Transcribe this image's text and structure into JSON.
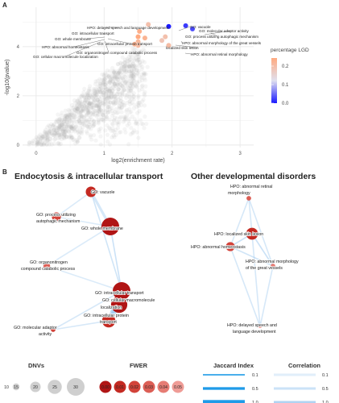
{
  "panel_a_letter": "A",
  "panel_b_letter": "B",
  "chart_data": [
    {
      "type": "scatter",
      "xlabel": "log2(enrichment rate)",
      "ylabel": "-log10(pvalue)",
      "xlim": [
        -0.2,
        3.2
      ],
      "ylim": [
        -0.1,
        5.6
      ],
      "xticks": [
        0,
        1,
        2,
        3
      ],
      "yticks": [
        0,
        2,
        4
      ],
      "grid": true,
      "legend": {
        "title": "percentage LGD",
        "position": "right",
        "ticks": [
          "0.2",
          "0.1",
          "0.0"
        ],
        "color_range": [
          0.0,
          0.25
        ],
        "colors": [
          "#1a1aff",
          "#e0e0ee",
          "#ffaa80"
        ]
      },
      "background_color": "#b3b3b3",
      "highlighted": [
        {
          "label": "HPO: delayed speech and language development",
          "x": 1.65,
          "y": 4.9,
          "lgd": 0.2
        },
        {
          "label": "GO: intracellular transport",
          "x": 1.52,
          "y": 4.62,
          "lgd": 0.24
        },
        {
          "label": "GO: whole membrane",
          "x": 1.5,
          "y": 4.4,
          "lgd": 0.25
        },
        {
          "label": "GO: intracellular protein transport",
          "x": 1.6,
          "y": 4.35,
          "lgd": 0.23
        },
        {
          "label": "HPO: abnormal homeostasis",
          "x": 1.5,
          "y": 4.2,
          "lgd": 0.22
        },
        {
          "label": "GO: organonitrogen compound catabolic process",
          "x": 1.5,
          "y": 4.05,
          "lgd": 0.21
        },
        {
          "label": "GO: cellular macromolecule localization",
          "x": 1.45,
          "y": 4.1,
          "lgd": 0.23
        },
        {
          "label": "GO: vacuole",
          "x": 1.95,
          "y": 4.82,
          "lgd": 0.0
        },
        {
          "label": "GO: molecular adaptor activity",
          "x": 2.2,
          "y": 4.85,
          "lgd": 0.02
        },
        {
          "label": "GO: process utilizing autophagic mechanism",
          "x": 2.3,
          "y": 4.72,
          "lgd": 0.03
        },
        {
          "label": "HPO: abnormal morphology of the great vessels",
          "x": 1.9,
          "y": 4.4,
          "lgd": 0.2
        },
        {
          "label": "HPO: localized skin lesion",
          "x": 1.85,
          "y": 4.25,
          "lgd": 0.19
        },
        {
          "label": "HPO: abnormal retinal morphology",
          "x": 1.95,
          "y": 4.05,
          "lgd": 0.21
        }
      ],
      "annotations": [
        "HPO: delayed speech and language development",
        "GO: intracellular transport",
        "GO: whole membrane",
        "GO: intracellular protein transport",
        "HPO: abnormal homeostasis",
        "GO: organonitrogen compound catabolic process",
        "GO: cellular macromolecule localization",
        "GO: vacuole",
        "GO: molecular adaptor activity",
        "GO: process utilizing autophagic mechanism",
        "HPO: abnormal morphology of the great vessels",
        "localized skin lesion",
        "HPO: abnormal retinal morphology"
      ]
    },
    {
      "type": "network",
      "clusters": [
        "Endocytosis & intracellular transport",
        "Other developmental disorders"
      ],
      "nodes": [
        {
          "id": "vacuole",
          "label": "GO: vacuole",
          "cluster": 0,
          "dnvs": 20,
          "fwer": 0.01
        },
        {
          "id": "autophagy",
          "label": "GO: process utilizing autophagic mechanism",
          "cluster": 0,
          "dnvs": 18,
          "fwer": 0.02
        },
        {
          "id": "whole_membrane",
          "label": "GO: whole membrane",
          "cluster": 0,
          "dnvs": 30,
          "fwer": 0.0
        },
        {
          "id": "organonitrogen",
          "label": "GO: organonitrogen compound catabolic process",
          "cluster": 0,
          "dnvs": 15,
          "fwer": 0.03
        },
        {
          "id": "intracellular_transport",
          "label": "GO: intracellular transport",
          "cluster": 0,
          "dnvs": 30,
          "fwer": 0.0
        },
        {
          "id": "macromolecule_localization",
          "label": "GO: cellular macromolecule localization",
          "cluster": 0,
          "dnvs": 28,
          "fwer": 0.0
        },
        {
          "id": "intracellular_protein_transport",
          "label": "GO: intracellular protein transport",
          "cluster": 0,
          "dnvs": 24,
          "fwer": 0.01
        },
        {
          "id": "adaptor",
          "label": "GO: molecular adaptor activity",
          "cluster": 0,
          "dnvs": 12,
          "fwer": 0.02
        },
        {
          "id": "retinal",
          "label": "HPO: abnormal retinal morphology",
          "cluster": 1,
          "dnvs": 12,
          "fwer": 0.03
        },
        {
          "id": "skin",
          "label": "HPO: localized skin lesion",
          "cluster": 1,
          "dnvs": 22,
          "fwer": 0.01
        },
        {
          "id": "homeostasis",
          "label": "HPO: abnormal homeostasis",
          "cluster": 1,
          "dnvs": 18,
          "fwer": 0.02
        },
        {
          "id": "great_vessels",
          "label": "HPO: abnormal morphology of the great vessels",
          "cluster": 1,
          "dnvs": 12,
          "fwer": 0.04
        },
        {
          "id": "speech",
          "label": "HPO: delayed speech and language development",
          "cluster": 1,
          "dnvs": 10,
          "fwer": 0.05
        }
      ],
      "edges": [
        {
          "source": "vacuole",
          "target": "whole_membrane",
          "jaccard": 0.5,
          "correlation": 0.3
        },
        {
          "source": "vacuole",
          "target": "autophagy",
          "jaccard": 0.1,
          "correlation": 0.2
        },
        {
          "source": "vacuole",
          "target": "intracellular_transport",
          "jaccard": 0.1,
          "correlation": 0.4
        },
        {
          "source": "autophagy",
          "target": "whole_membrane",
          "jaccard": 0.1,
          "correlation": 0.2
        },
        {
          "source": "whole_membrane",
          "target": "intracellular_transport",
          "jaccard": 0.1,
          "correlation": 0.5
        },
        {
          "source": "whole_membrane",
          "target": "organonitrogen",
          "jaccard": 0.1,
          "correlation": 0.2
        },
        {
          "source": "organonitrogen",
          "target": "intracellular_transport",
          "jaccard": 0.1,
          "correlation": 0.2
        },
        {
          "source": "intracellular_transport",
          "target": "macromolecule_localization",
          "jaccard": 0.5,
          "correlation": 0.6
        },
        {
          "source": "intracellular_transport",
          "target": "intracellular_protein_transport",
          "jaccard": 1.0,
          "correlation": 0.8
        },
        {
          "source": "macromolecule_localization",
          "target": "intracellular_protein_transport",
          "jaccard": 1.0,
          "correlation": 0.8
        },
        {
          "source": "intracellular_transport",
          "target": "adaptor",
          "jaccard": 0.1,
          "correlation": 0.3
        },
        {
          "source": "intracellular_protein_transport",
          "target": "adaptor",
          "jaccard": 0.1,
          "correlation": 0.3
        },
        {
          "source": "retinal",
          "target": "skin",
          "jaccard": 0.1,
          "correlation": 0.3
        },
        {
          "source": "retinal",
          "target": "homeostasis",
          "jaccard": 0.1,
          "correlation": 0.3
        },
        {
          "source": "retinal",
          "target": "great_vessels",
          "jaccard": 0.1,
          "correlation": 0.3
        },
        {
          "source": "skin",
          "target": "homeostasis",
          "jaccard": 0.1,
          "correlation": 0.5
        },
        {
          "source": "skin",
          "target": "great_vessels",
          "jaccard": 0.1,
          "correlation": 0.5
        },
        {
          "source": "homeostasis",
          "target": "great_vessels",
          "jaccard": 0.1,
          "correlation": 0.4
        },
        {
          "source": "homeostasis",
          "target": "speech",
          "jaccard": 0.1,
          "correlation": 0.3
        },
        {
          "source": "skin",
          "target": "speech",
          "jaccard": 0.1,
          "correlation": 0.3
        },
        {
          "source": "great_vessels",
          "target": "speech",
          "jaccard": 0.1,
          "correlation": 0.3
        }
      ],
      "legends": {
        "dnvs": {
          "title": "DNVs",
          "values": [
            "10",
            "15",
            "20",
            "25",
            "30"
          ]
        },
        "fwer": {
          "title": "FWER",
          "values": [
            "0.00",
            "0.01",
            "0.02",
            "0.03",
            "0.04",
            "0.05"
          ],
          "colors": [
            "#b01515",
            "#c42a22",
            "#d2433a",
            "#dc5e55",
            "#e67c74",
            "#ef9c96"
          ]
        },
        "jaccard": {
          "title": "Jaccard Index",
          "values": [
            "0.1",
            "0.5",
            "1.0"
          ]
        },
        "correlation": {
          "title": "Correlation",
          "values": [
            "0.1",
            "0.5",
            "1.0"
          ]
        }
      }
    }
  ]
}
